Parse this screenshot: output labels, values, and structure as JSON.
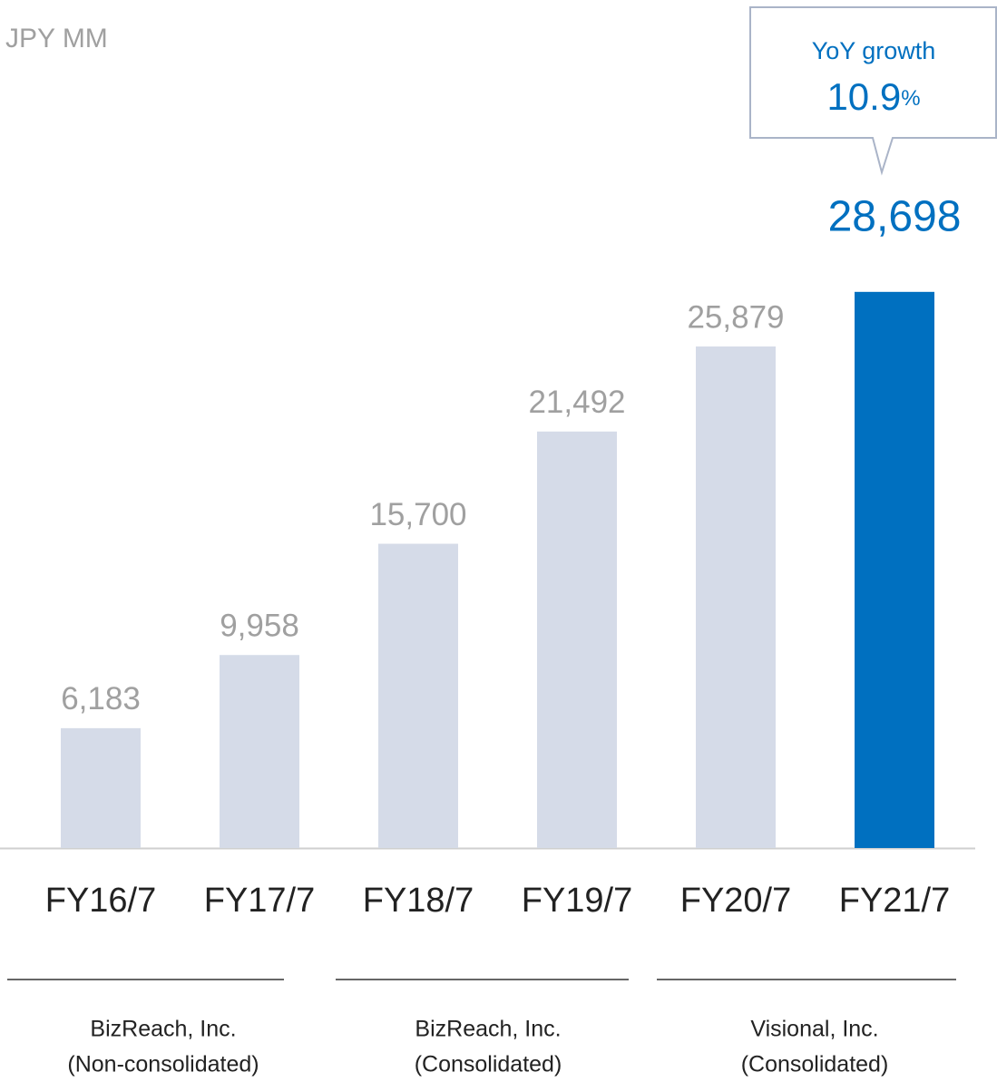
{
  "chart_data": {
    "type": "bar",
    "unit_label": "JPY MM",
    "categories": [
      "FY16/7",
      "FY17/7",
      "FY18/7",
      "FY19/7",
      "FY20/7",
      "FY21/7"
    ],
    "values": [
      6183,
      9958,
      15700,
      21492,
      25879,
      28698
    ],
    "value_labels": [
      "6,183",
      "9,958",
      "15,700",
      "21,492",
      "25,879",
      "28,698"
    ],
    "colors": [
      "#d5dbe8",
      "#d5dbe8",
      "#d5dbe8",
      "#d5dbe8",
      "#d5dbe8",
      "#0070c0"
    ],
    "value_label_colors": [
      "#a0a0a0",
      "#a0a0a0",
      "#a0a0a0",
      "#a0a0a0",
      "#a0a0a0",
      "#0070c0"
    ],
    "ylim": [
      0,
      30000
    ],
    "annotation": {
      "label": "YoY growth",
      "value": "10.9",
      "unit": "%"
    },
    "groups": [
      {
        "name": "BizReach, Inc.",
        "scope": "(Non-consolidated)"
      },
      {
        "name": "BizReach, Inc.",
        "scope": "(Consolidated)"
      },
      {
        "name": "Visional, Inc.",
        "scope": "(Consolidated)"
      }
    ]
  }
}
